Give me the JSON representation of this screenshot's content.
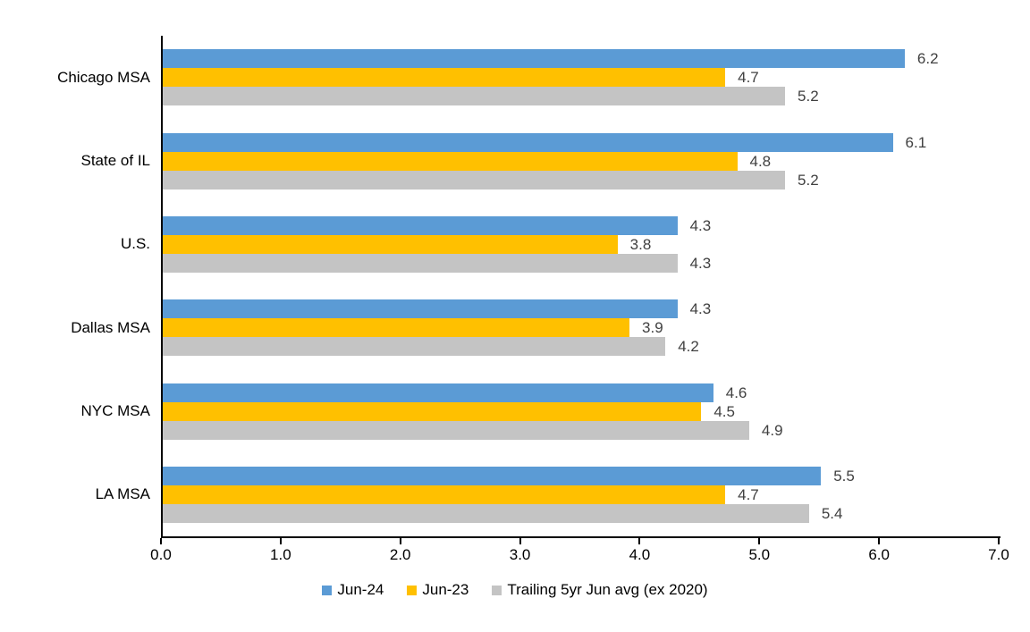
{
  "chart_data": {
    "type": "bar",
    "orientation": "horizontal",
    "title": "",
    "xlabel": "",
    "ylabel": "",
    "categories": [
      "Chicago MSA",
      "State of IL",
      "U.S.",
      "Dallas MSA",
      "NYC MSA",
      "LA MSA"
    ],
    "series": [
      {
        "name": "Jun-24",
        "color": "#5B9BD5",
        "values": [
          6.2,
          6.1,
          4.3,
          4.3,
          4.6,
          5.5
        ]
      },
      {
        "name": "Jun-23",
        "color": "#FFC000",
        "values": [
          4.7,
          4.8,
          3.8,
          3.9,
          4.5,
          4.7
        ]
      },
      {
        "name": "Trailing 5yr Jun avg (ex 2020)",
        "color": "#C4C4C4",
        "values": [
          5.2,
          5.2,
          4.3,
          4.2,
          4.9,
          5.4
        ]
      }
    ],
    "xlim": [
      0.0,
      7.0
    ],
    "x_tick_labels": [
      "0.0",
      "1.0",
      "2.0",
      "3.0",
      "4.0",
      "5.0",
      "6.0",
      "7.0"
    ],
    "data_labels_shown": true,
    "data_label_decimals": 1,
    "grid": false,
    "legend_position": "bottom",
    "colors": {
      "axis_line": "#000000",
      "value_label_text": "#404040",
      "axis_text": "#000000",
      "background": "#FFFFFF"
    }
  }
}
